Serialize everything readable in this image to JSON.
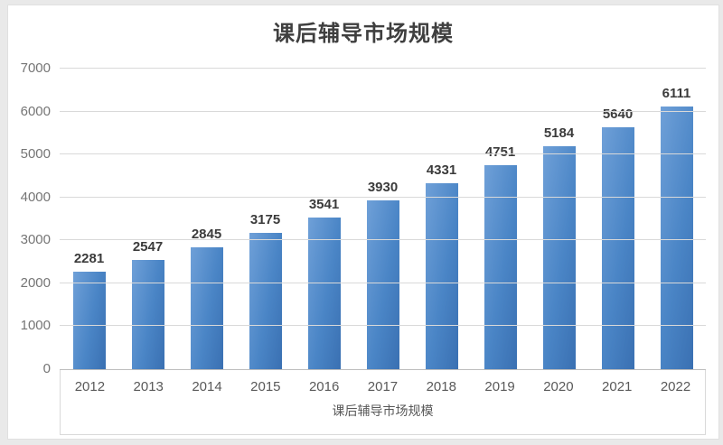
{
  "chart_data": {
    "type": "bar",
    "title": "课后辅导市场规模",
    "xlabel": "课后辅导市场规模",
    "ylabel": "",
    "categories": [
      "2012",
      "2013",
      "2014",
      "2015",
      "2016",
      "2017",
      "2018",
      "2019",
      "2020",
      "2021",
      "2022"
    ],
    "values": [
      2281,
      2547,
      2845,
      3175,
      3541,
      3930,
      4331,
      4751,
      5184,
      5640,
      6111
    ],
    "ylim": [
      0,
      7000
    ],
    "yticks": [
      0,
      1000,
      2000,
      3000,
      4000,
      5000,
      6000,
      7000
    ],
    "grid": true,
    "legend": "none",
    "colors": {
      "bar_gradient_light": "#6fa0d8",
      "bar_gradient_mid": "#4a85c6",
      "bar_gradient_dark": "#3a70b2",
      "gridline": "#d9d9d9",
      "axis_line": "#bdbdbd",
      "title_text": "#3f3f3f",
      "tick_text": "#757575",
      "value_label_text": "#3b3b3b",
      "frame_background": "#e9e9e9"
    }
  }
}
